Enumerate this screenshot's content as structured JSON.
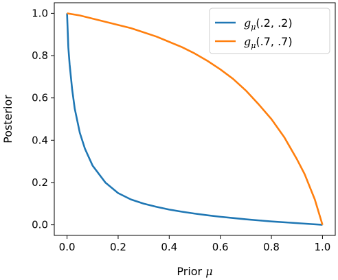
{
  "chart_data": {
    "type": "line",
    "xlabel_text": "Prior ",
    "xlabel_symbol": "μ",
    "ylabel": "Posterior",
    "xlim": [
      -0.05,
      1.05
    ],
    "ylim": [
      -0.05,
      1.05
    ],
    "x_ticks": [
      0.0,
      0.2,
      0.4,
      0.6,
      0.8,
      1.0
    ],
    "x_tick_labels": [
      "0.0",
      "0.2",
      "0.4",
      "0.6",
      "0.8",
      "1.0"
    ],
    "y_ticks": [
      0.0,
      0.2,
      0.4,
      0.6,
      0.8,
      1.0
    ],
    "y_tick_labels": [
      "0.0",
      "0.2",
      "0.4",
      "0.6",
      "0.8",
      "1.0"
    ],
    "grid": false,
    "legend_position": "top-right",
    "series": [
      {
        "name_fn": "g",
        "name_sub": "μ",
        "name_args": "(.2, .2)",
        "color": "#1f77b4",
        "x": [
          0.0,
          0.005,
          0.01,
          0.02,
          0.03,
          0.05,
          0.07,
          0.1,
          0.15,
          0.2,
          0.25,
          0.3,
          0.35,
          0.4,
          0.45,
          0.5,
          0.55,
          0.6,
          0.65,
          0.7,
          0.75,
          0.8,
          0.85,
          0.9,
          0.95,
          1.0
        ],
        "y": [
          1.0,
          0.84,
          0.76,
          0.64,
          0.55,
          0.435,
          0.36,
          0.28,
          0.2,
          0.15,
          0.12,
          0.1,
          0.085,
          0.072,
          0.062,
          0.053,
          0.045,
          0.038,
          0.032,
          0.026,
          0.021,
          0.016,
          0.012,
          0.008,
          0.004,
          0.0
        ]
      },
      {
        "name_fn": "g",
        "name_sub": "μ",
        "name_args": "(.7, .7)",
        "color": "#ff7f0e",
        "x": [
          0.0,
          0.05,
          0.1,
          0.15,
          0.2,
          0.25,
          0.3,
          0.35,
          0.4,
          0.45,
          0.5,
          0.55,
          0.6,
          0.65,
          0.7,
          0.75,
          0.8,
          0.85,
          0.9,
          0.93,
          0.95,
          0.97,
          0.99,
          1.0
        ],
        "y": [
          1.0,
          0.99,
          0.975,
          0.96,
          0.945,
          0.93,
          0.91,
          0.89,
          0.865,
          0.84,
          0.81,
          0.775,
          0.735,
          0.69,
          0.635,
          0.57,
          0.5,
          0.415,
          0.31,
          0.24,
          0.18,
          0.12,
          0.04,
          0.0
        ]
      }
    ]
  }
}
